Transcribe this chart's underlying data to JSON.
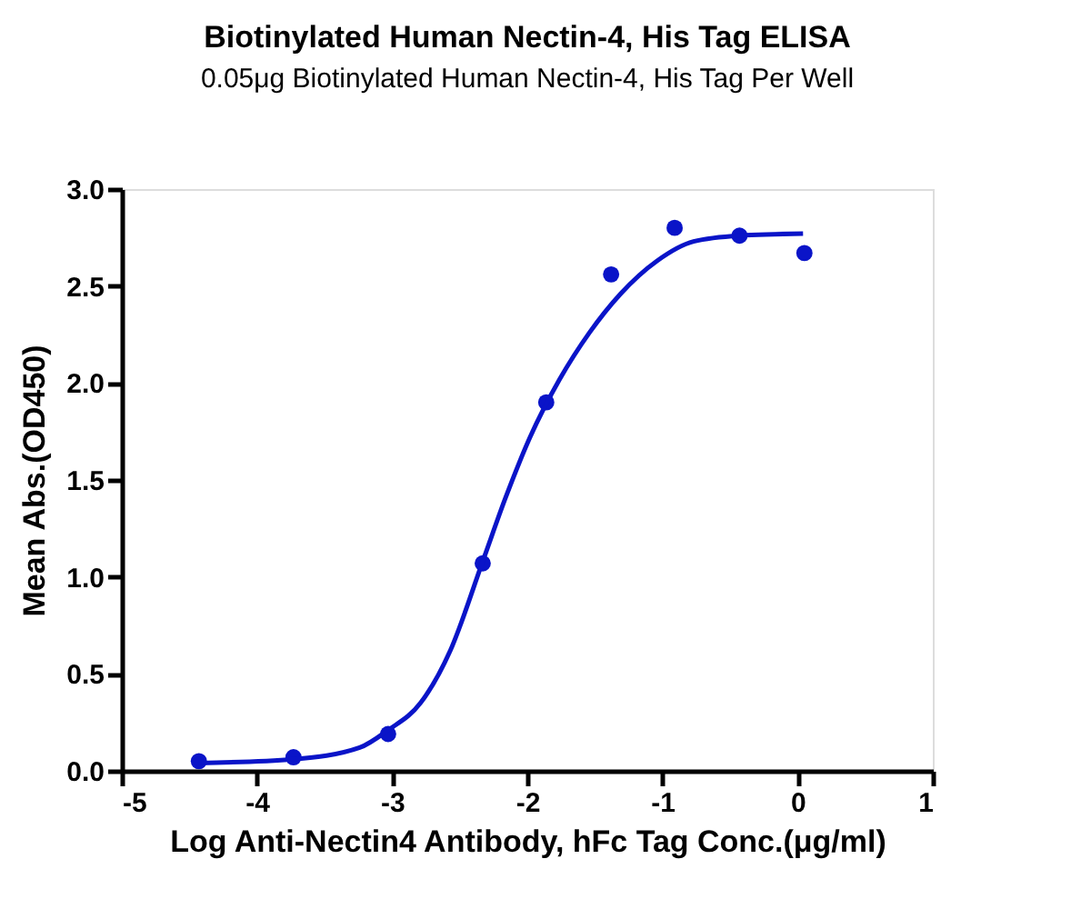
{
  "chart_data": {
    "type": "scatter",
    "title": "Biotinylated Human Nectin-4, His Tag ELISA",
    "subtitle": "0.05μg Biotinylated Human Nectin-4, His Tag Per Well",
    "xlabel": "Log Anti-Nectin4 Antibody, hFc Tag Conc.(μg/ml)",
    "ylabel": "Mean Abs.(OD450)",
    "xlim": [
      -5,
      1
    ],
    "ylim": [
      0,
      3.0
    ],
    "xticks": [
      -5,
      -4,
      -3,
      -2,
      -1,
      0,
      1
    ],
    "yticks": [
      {
        "value": 0,
        "label": "0.0"
      },
      {
        "value": 0.5,
        "label": "0.5"
      },
      {
        "value": 1,
        "label": "1.0"
      },
      {
        "value": 1.5,
        "label": "1.5"
      },
      {
        "value": 2,
        "label": "2.0"
      },
      {
        "value": 2.5,
        "label": "2.5"
      },
      {
        "value": 3,
        "label": "3.0"
      }
    ],
    "grid": false,
    "legend": false,
    "series": [
      {
        "type": "scatter",
        "marker": "circle",
        "color": "#0a14c8",
        "x": [
          -4.43,
          -3.73,
          -3.03,
          -2.33,
          -1.86,
          -1.38,
          -0.91,
          -0.43,
          0.05
        ],
        "values": [
          0.05,
          0.07,
          0.19,
          1.07,
          1.9,
          2.56,
          2.8,
          2.76,
          2.67
        ]
      },
      {
        "type": "line",
        "marker": "none",
        "line_style": "solid",
        "color": "#0a14c8",
        "x": [
          -4.43,
          -3.73,
          -3.24,
          -3.03,
          -2.79,
          -2.57,
          -2.33,
          -2.16,
          -1.98,
          -1.76,
          -1.54,
          -1.31,
          -1.04,
          -0.77,
          -0.43,
          0.04
        ],
        "values": [
          0.04,
          0.06,
          0.12,
          0.21,
          0.35,
          0.62,
          1.08,
          1.41,
          1.72,
          2.02,
          2.26,
          2.46,
          2.63,
          2.73,
          2.76,
          2.77
        ]
      }
    ]
  }
}
